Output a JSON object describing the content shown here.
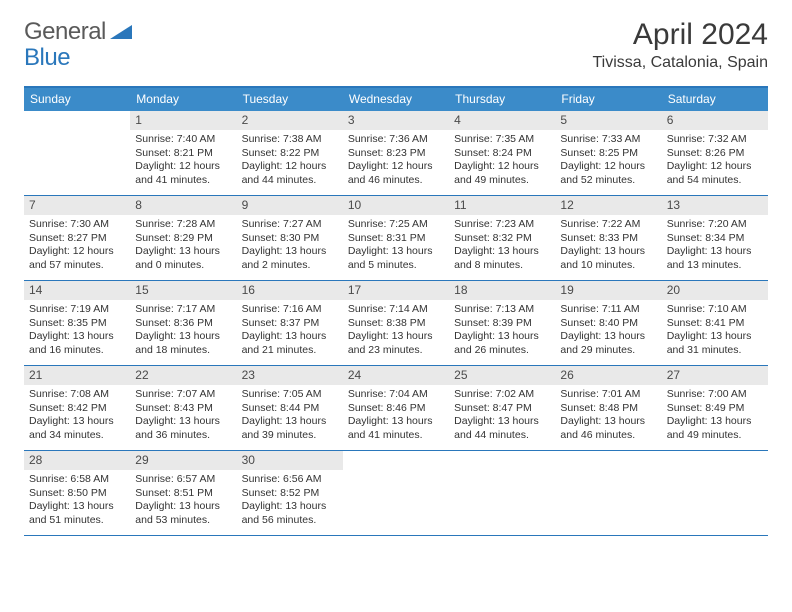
{
  "logo": {
    "part1": "General",
    "part2": "Blue"
  },
  "title": "April 2024",
  "location": "Tivissa, Catalonia, Spain",
  "colors": {
    "accent": "#2a77bb",
    "header_bg": "#3b8bc9",
    "daynum_bg": "#e9e9e9",
    "text": "#333333"
  },
  "dow": [
    "Sunday",
    "Monday",
    "Tuesday",
    "Wednesday",
    "Thursday",
    "Friday",
    "Saturday"
  ],
  "weeks": [
    [
      {
        "n": "",
        "sr": "",
        "ss": "",
        "dl": ""
      },
      {
        "n": "1",
        "sr": "Sunrise: 7:40 AM",
        "ss": "Sunset: 8:21 PM",
        "dl": "Daylight: 12 hours and 41 minutes."
      },
      {
        "n": "2",
        "sr": "Sunrise: 7:38 AM",
        "ss": "Sunset: 8:22 PM",
        "dl": "Daylight: 12 hours and 44 minutes."
      },
      {
        "n": "3",
        "sr": "Sunrise: 7:36 AM",
        "ss": "Sunset: 8:23 PM",
        "dl": "Daylight: 12 hours and 46 minutes."
      },
      {
        "n": "4",
        "sr": "Sunrise: 7:35 AM",
        "ss": "Sunset: 8:24 PM",
        "dl": "Daylight: 12 hours and 49 minutes."
      },
      {
        "n": "5",
        "sr": "Sunrise: 7:33 AM",
        "ss": "Sunset: 8:25 PM",
        "dl": "Daylight: 12 hours and 52 minutes."
      },
      {
        "n": "6",
        "sr": "Sunrise: 7:32 AM",
        "ss": "Sunset: 8:26 PM",
        "dl": "Daylight: 12 hours and 54 minutes."
      }
    ],
    [
      {
        "n": "7",
        "sr": "Sunrise: 7:30 AM",
        "ss": "Sunset: 8:27 PM",
        "dl": "Daylight: 12 hours and 57 minutes."
      },
      {
        "n": "8",
        "sr": "Sunrise: 7:28 AM",
        "ss": "Sunset: 8:29 PM",
        "dl": "Daylight: 13 hours and 0 minutes."
      },
      {
        "n": "9",
        "sr": "Sunrise: 7:27 AM",
        "ss": "Sunset: 8:30 PM",
        "dl": "Daylight: 13 hours and 2 minutes."
      },
      {
        "n": "10",
        "sr": "Sunrise: 7:25 AM",
        "ss": "Sunset: 8:31 PM",
        "dl": "Daylight: 13 hours and 5 minutes."
      },
      {
        "n": "11",
        "sr": "Sunrise: 7:23 AM",
        "ss": "Sunset: 8:32 PM",
        "dl": "Daylight: 13 hours and 8 minutes."
      },
      {
        "n": "12",
        "sr": "Sunrise: 7:22 AM",
        "ss": "Sunset: 8:33 PM",
        "dl": "Daylight: 13 hours and 10 minutes."
      },
      {
        "n": "13",
        "sr": "Sunrise: 7:20 AM",
        "ss": "Sunset: 8:34 PM",
        "dl": "Daylight: 13 hours and 13 minutes."
      }
    ],
    [
      {
        "n": "14",
        "sr": "Sunrise: 7:19 AM",
        "ss": "Sunset: 8:35 PM",
        "dl": "Daylight: 13 hours and 16 minutes."
      },
      {
        "n": "15",
        "sr": "Sunrise: 7:17 AM",
        "ss": "Sunset: 8:36 PM",
        "dl": "Daylight: 13 hours and 18 minutes."
      },
      {
        "n": "16",
        "sr": "Sunrise: 7:16 AM",
        "ss": "Sunset: 8:37 PM",
        "dl": "Daylight: 13 hours and 21 minutes."
      },
      {
        "n": "17",
        "sr": "Sunrise: 7:14 AM",
        "ss": "Sunset: 8:38 PM",
        "dl": "Daylight: 13 hours and 23 minutes."
      },
      {
        "n": "18",
        "sr": "Sunrise: 7:13 AM",
        "ss": "Sunset: 8:39 PM",
        "dl": "Daylight: 13 hours and 26 minutes."
      },
      {
        "n": "19",
        "sr": "Sunrise: 7:11 AM",
        "ss": "Sunset: 8:40 PM",
        "dl": "Daylight: 13 hours and 29 minutes."
      },
      {
        "n": "20",
        "sr": "Sunrise: 7:10 AM",
        "ss": "Sunset: 8:41 PM",
        "dl": "Daylight: 13 hours and 31 minutes."
      }
    ],
    [
      {
        "n": "21",
        "sr": "Sunrise: 7:08 AM",
        "ss": "Sunset: 8:42 PM",
        "dl": "Daylight: 13 hours and 34 minutes."
      },
      {
        "n": "22",
        "sr": "Sunrise: 7:07 AM",
        "ss": "Sunset: 8:43 PM",
        "dl": "Daylight: 13 hours and 36 minutes."
      },
      {
        "n": "23",
        "sr": "Sunrise: 7:05 AM",
        "ss": "Sunset: 8:44 PM",
        "dl": "Daylight: 13 hours and 39 minutes."
      },
      {
        "n": "24",
        "sr": "Sunrise: 7:04 AM",
        "ss": "Sunset: 8:46 PM",
        "dl": "Daylight: 13 hours and 41 minutes."
      },
      {
        "n": "25",
        "sr": "Sunrise: 7:02 AM",
        "ss": "Sunset: 8:47 PM",
        "dl": "Daylight: 13 hours and 44 minutes."
      },
      {
        "n": "26",
        "sr": "Sunrise: 7:01 AM",
        "ss": "Sunset: 8:48 PM",
        "dl": "Daylight: 13 hours and 46 minutes."
      },
      {
        "n": "27",
        "sr": "Sunrise: 7:00 AM",
        "ss": "Sunset: 8:49 PM",
        "dl": "Daylight: 13 hours and 49 minutes."
      }
    ],
    [
      {
        "n": "28",
        "sr": "Sunrise: 6:58 AM",
        "ss": "Sunset: 8:50 PM",
        "dl": "Daylight: 13 hours and 51 minutes."
      },
      {
        "n": "29",
        "sr": "Sunrise: 6:57 AM",
        "ss": "Sunset: 8:51 PM",
        "dl": "Daylight: 13 hours and 53 minutes."
      },
      {
        "n": "30",
        "sr": "Sunrise: 6:56 AM",
        "ss": "Sunset: 8:52 PM",
        "dl": "Daylight: 13 hours and 56 minutes."
      },
      {
        "n": "",
        "sr": "",
        "ss": "",
        "dl": ""
      },
      {
        "n": "",
        "sr": "",
        "ss": "",
        "dl": ""
      },
      {
        "n": "",
        "sr": "",
        "ss": "",
        "dl": ""
      },
      {
        "n": "",
        "sr": "",
        "ss": "",
        "dl": ""
      }
    ]
  ]
}
